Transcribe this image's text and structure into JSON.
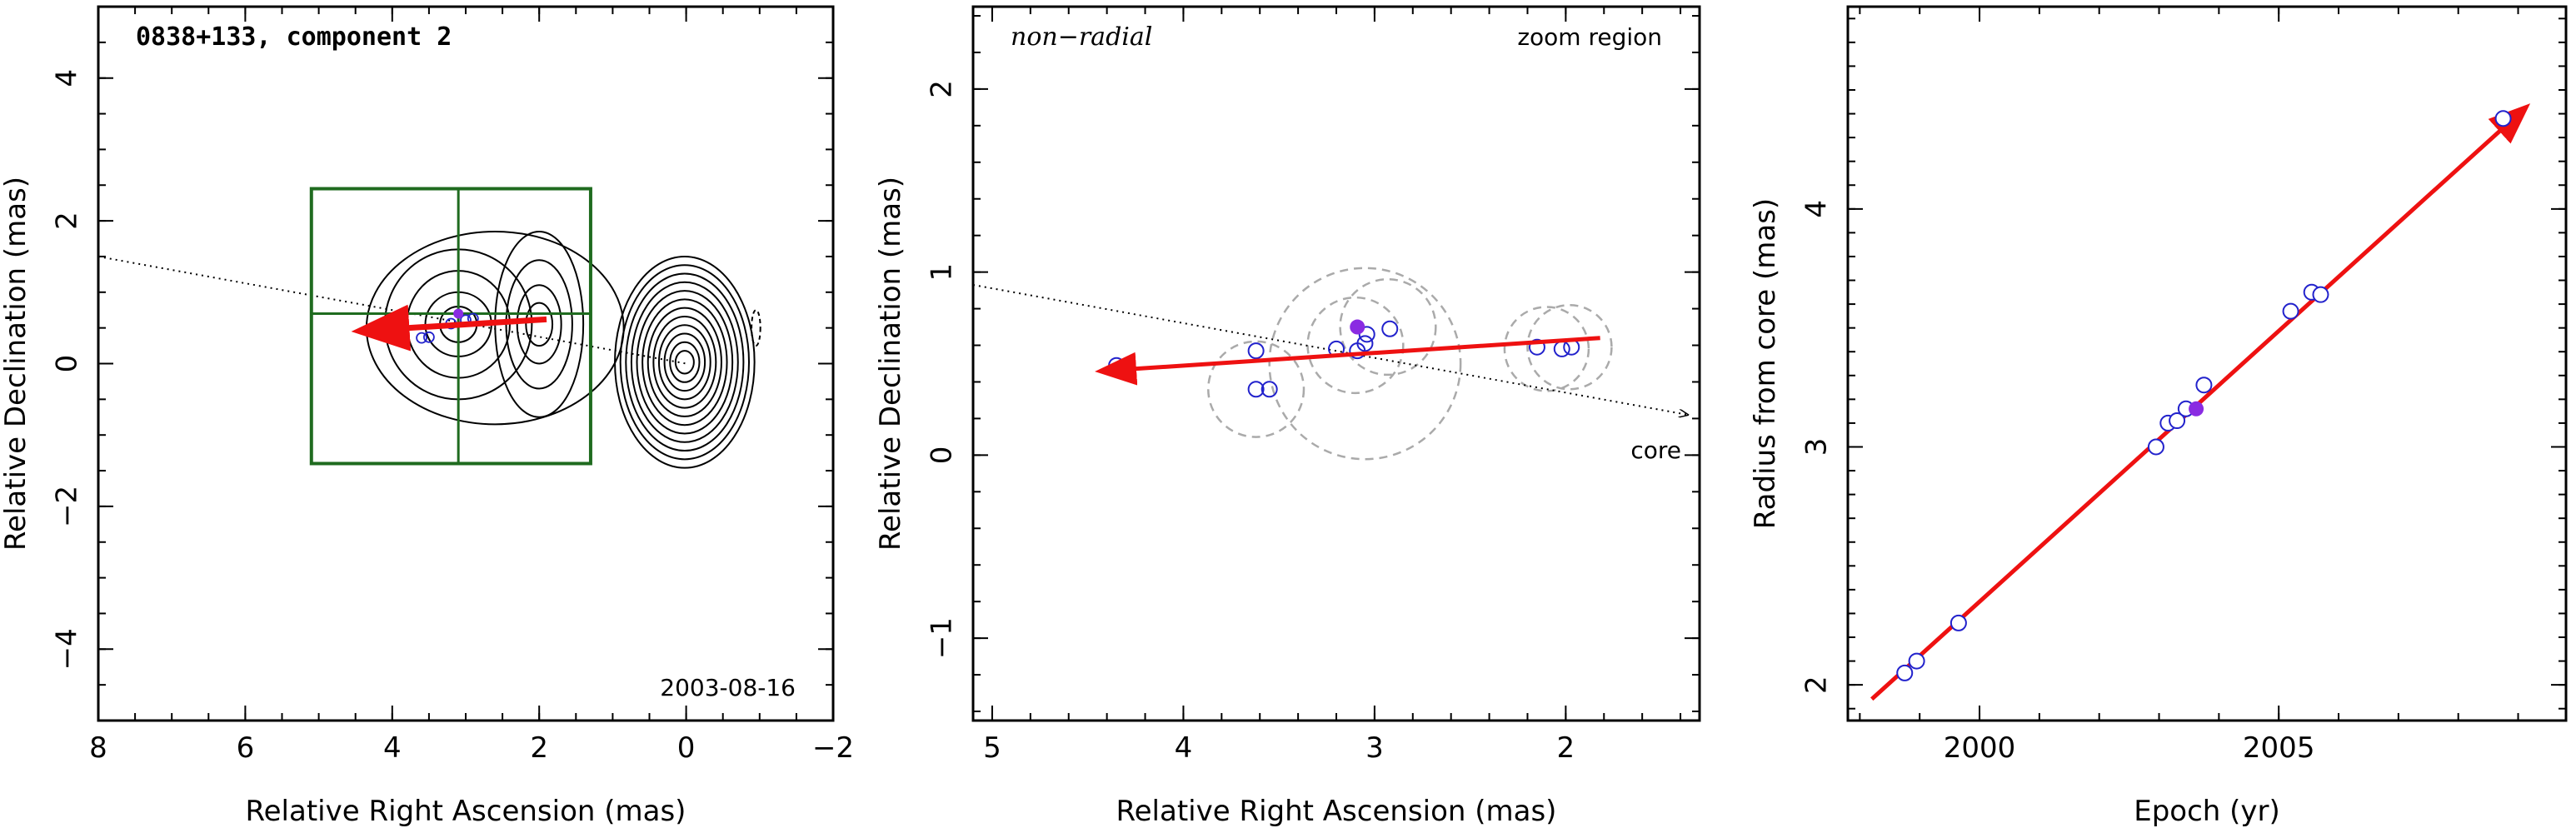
{
  "chart_data": [
    {
      "type": "scatter",
      "title": "0838+133, component 2",
      "xlabel": "Relative Right Ascension (mas)",
      "ylabel": "Relative Declination (mas)",
      "xlim": [
        8,
        -2
      ],
      "ylim": [
        -5,
        5
      ],
      "x_ticks": [
        8,
        6,
        4,
        2,
        0,
        -2
      ],
      "x_tick_labels": [
        "8",
        "6",
        "4",
        "2",
        "0",
        "−2"
      ],
      "y_ticks": [
        -4,
        -2,
        0,
        2,
        4
      ],
      "y_tick_labels": [
        "−4",
        "−2",
        "0",
        "2",
        "4"
      ],
      "date_label": "2003-08-16",
      "zoom_box": {
        "x_range": [
          5.1,
          1.3
        ],
        "y_range": [
          -1.4,
          2.45
        ],
        "crosshair": [
          3.1,
          0.7
        ]
      },
      "ra_markers": [
        {
          "x": 4.1,
          "y": 0.5
        },
        {
          "x": 3.6,
          "y": 0.36
        },
        {
          "x": 3.5,
          "y": 0.37
        },
        {
          "x": 3.2,
          "y": 0.56
        },
        {
          "x": 3.0,
          "y": 0.61
        },
        {
          "x": 2.9,
          "y": 0.63
        }
      ],
      "filled_point": {
        "x": 3.1,
        "y": 0.7
      },
      "motion_vector": {
        "from": [
          1.9,
          0.62
        ],
        "to": [
          4.4,
          0.46
        ]
      },
      "radial_line": {
        "from": [
          8,
          1.5
        ],
        "to": [
          0,
          0
        ]
      },
      "colors": {
        "contour": "#000000",
        "zoom_box": "#1f6b1f",
        "vector": "#ee1111",
        "points": "#2222cc",
        "filled": "#8a2be2"
      }
    },
    {
      "type": "scatter",
      "title": "non−radial",
      "subtitle": "zoom region",
      "xlabel": "Relative Right Ascension (mas)",
      "ylabel": "Relative Declination (mas)",
      "xlim": [
        5.1,
        1.3
      ],
      "ylim": [
        -1.45,
        2.45
      ],
      "x_ticks": [
        5,
        4,
        3,
        2
      ],
      "x_tick_labels": [
        "5",
        "4",
        "3",
        "2"
      ],
      "y_ticks": [
        -1,
        0,
        1,
        2
      ],
      "y_tick_labels": [
        "−1",
        "0",
        "1",
        "2"
      ],
      "core_label": "core",
      "points": [
        {
          "x": 4.35,
          "y": 0.49
        },
        {
          "x": 3.62,
          "y": 0.57
        },
        {
          "x": 3.62,
          "y": 0.36
        },
        {
          "x": 3.55,
          "y": 0.36
        },
        {
          "x": 3.2,
          "y": 0.58
        },
        {
          "x": 3.09,
          "y": 0.57
        },
        {
          "x": 3.05,
          "y": 0.61
        },
        {
          "x": 3.04,
          "y": 0.66
        },
        {
          "x": 2.92,
          "y": 0.69
        },
        {
          "x": 2.15,
          "y": 0.59
        },
        {
          "x": 2.02,
          "y": 0.58
        },
        {
          "x": 1.97,
          "y": 0.59
        }
      ],
      "filled_point": {
        "x": 3.09,
        "y": 0.7
      },
      "error_circles": [
        {
          "x": 3.62,
          "y": 0.36,
          "r": 0.25
        },
        {
          "x": 3.05,
          "y": 0.5,
          "r": 0.5
        },
        {
          "x": 3.1,
          "y": 0.6,
          "r": 0.25
        },
        {
          "x": 2.93,
          "y": 0.7,
          "r": 0.25
        },
        {
          "x": 2.1,
          "y": 0.58,
          "r": 0.22
        },
        {
          "x": 1.98,
          "y": 0.59,
          "r": 0.22
        }
      ],
      "motion_vector": {
        "from": [
          1.82,
          0.64
        ],
        "to": [
          4.42,
          0.46
        ]
      },
      "radial_line": {
        "from": [
          5.1,
          0.93
        ],
        "to": [
          1.36,
          0.22
        ]
      },
      "colors": {
        "vector": "#ee1111",
        "points": "#2222cc",
        "filled": "#8a2be2",
        "circles": "#aaaaaa"
      }
    },
    {
      "type": "scatter",
      "xlabel": "Epoch (yr)",
      "ylabel": "Radius from core (mas)",
      "xlim": [
        1997.8,
        2009.8
      ],
      "ylim": [
        1.85,
        4.85
      ],
      "x_ticks": [
        2000,
        2005
      ],
      "x_tick_labels": [
        "2000",
        "2005"
      ],
      "y_ticks": [
        2,
        3,
        4
      ],
      "y_tick_labels": [
        "2",
        "3",
        "4"
      ],
      "points": [
        {
          "x": 1998.75,
          "y": 2.05
        },
        {
          "x": 1998.95,
          "y": 2.1
        },
        {
          "x": 1999.65,
          "y": 2.26
        },
        {
          "x": 2002.95,
          "y": 3.0
        },
        {
          "x": 2003.15,
          "y": 3.1
        },
        {
          "x": 2003.3,
          "y": 3.11
        },
        {
          "x": 2003.45,
          "y": 3.16
        },
        {
          "x": 2003.75,
          "y": 3.26
        },
        {
          "x": 2005.2,
          "y": 3.57
        },
        {
          "x": 2005.55,
          "y": 3.65
        },
        {
          "x": 2005.7,
          "y": 3.64
        },
        {
          "x": 2008.75,
          "y": 4.38
        }
      ],
      "filled_point": {
        "x": 2003.62,
        "y": 3.16
      },
      "fit_line": {
        "from": [
          1998.2,
          1.94
        ],
        "to": [
          2009.1,
          4.42
        ]
      },
      "colors": {
        "fit": "#ee1111",
        "points": "#2222cc",
        "filled": "#8a2be2"
      }
    }
  ]
}
